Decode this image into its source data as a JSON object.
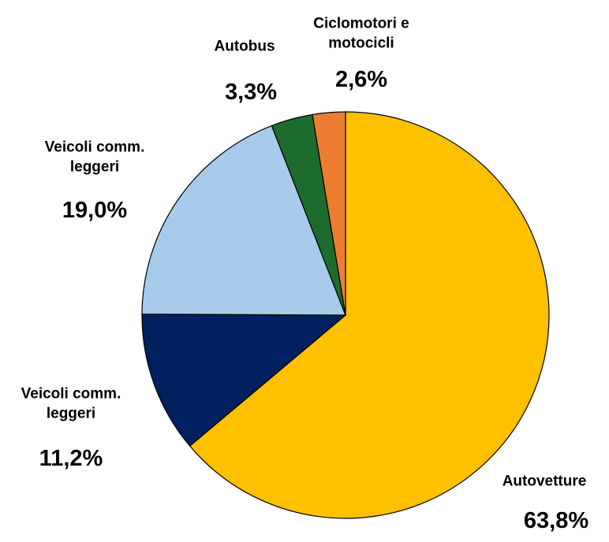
{
  "chart_data": {
    "type": "pie",
    "categories": [
      "Autovetture",
      "Veicoli comm. leggeri",
      "Veicoli comm. leggeri",
      "Autobus",
      "Ciclomotori e motocicli"
    ],
    "values": [
      63.8,
      11.2,
      19.0,
      3.3,
      2.6
    ],
    "value_labels": [
      "63,8%",
      "11,2%",
      "19,0%",
      "3,3%",
      "2,6%"
    ],
    "colors": [
      "#FFC000",
      "#002060",
      "#A9CBEB",
      "#1E6B2E",
      "#ED7D31"
    ]
  }
}
